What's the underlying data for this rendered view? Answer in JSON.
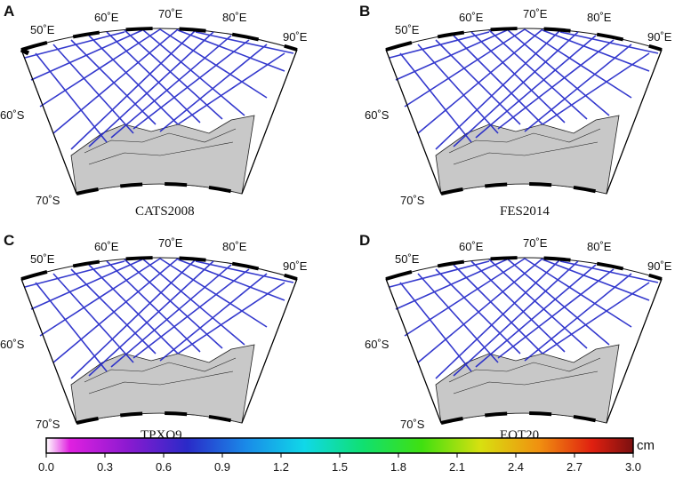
{
  "panels": [
    {
      "letter": "A",
      "title": "CATS2008"
    },
    {
      "letter": "B",
      "title": "FES2014"
    },
    {
      "letter": "C",
      "title": "TPXO9"
    },
    {
      "letter": "D",
      "title": "EOT20"
    }
  ],
  "lon_labels": [
    "50˚E",
    "60˚E",
    "70˚E",
    "80˚E",
    "90˚E"
  ],
  "lat_labels": [
    "60˚S",
    "70˚S"
  ],
  "colorbar": {
    "unit": "cm",
    "ticks": [
      "0.0",
      "0.3",
      "0.6",
      "0.9",
      "1.2",
      "1.5",
      "1.8",
      "2.1",
      "2.4",
      "2.7",
      "3.0"
    ],
    "range": [
      0,
      3.0
    ],
    "colors": [
      "#ffffff",
      "#e020e0",
      "#8a1ad0",
      "#2a2ac8",
      "#1a8ae8",
      "#10d8e8",
      "#10e070",
      "#40e010",
      "#d8e010",
      "#f09010",
      "#e02010",
      "#7a1010"
    ]
  },
  "map_colors": {
    "land": "#c8c8c8",
    "ocean": "#ffffff",
    "track_main": "#1f24c8"
  }
}
